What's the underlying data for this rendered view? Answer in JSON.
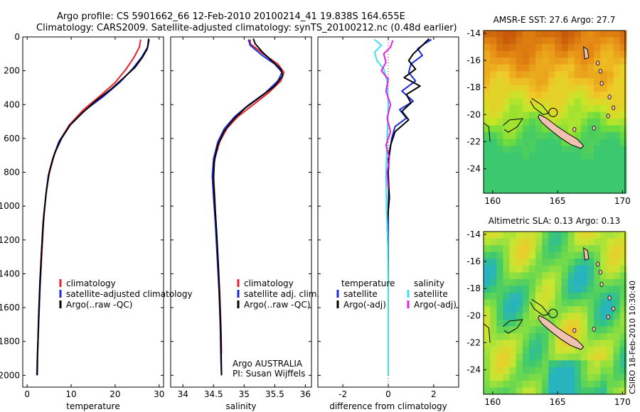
{
  "header": {
    "line1": "Argo profile: CS 5901662_66 12-Feb-2010 20100214_41 19.838S 164.655E",
    "line2": "Climatology: CARS2009. Satellite-adjusted climatology: synTS_20100212.nc (0.48d earlier)"
  },
  "credit": "CSIRO 18-Feb-2010 10:30:40",
  "colors": {
    "climatology": "#e8202a",
    "satellite": "#1a2adc",
    "argo": "#000000",
    "satellite_sal": "#3ee0ee",
    "argo_sal": "#e020e0"
  },
  "chart_data": [
    {
      "type": "line",
      "id": "temperature",
      "xlabel": "temperature",
      "ylabel": "",
      "xlim": [
        -1,
        31
      ],
      "ylim": [
        2070,
        0
      ],
      "xticks": [
        0,
        10,
        20,
        30
      ],
      "yticks": [
        0,
        200,
        400,
        600,
        800,
        1000,
        1200,
        1400,
        1600,
        1800,
        2000
      ],
      "legend": {
        "placement": "lower-left",
        "entries": [
          "climatology",
          "satellite-adjusted climatology",
          "Argo(..raw -QC)"
        ]
      },
      "series": [
        {
          "name": "climatology",
          "color": "#e8202a",
          "points": [
            [
              25.8,
              15
            ],
            [
              25.5,
              60
            ],
            [
              24.3,
              120
            ],
            [
              22.5,
              190
            ],
            [
              20.0,
              270
            ],
            [
              16.5,
              350
            ],
            [
              12.8,
              430
            ],
            [
              9.6,
              520
            ],
            [
              7.2,
              620
            ],
            [
              5.9,
              720
            ],
            [
              4.9,
              820
            ],
            [
              4.2,
              950
            ],
            [
              3.7,
              1100
            ],
            [
              3.3,
              1300
            ],
            [
              2.9,
              1500
            ],
            [
              2.6,
              1700
            ],
            [
              2.4,
              1870
            ]
          ]
        },
        {
          "name": "satellite-adjusted climatology",
          "color": "#1a2adc",
          "points": [
            [
              27.7,
              15
            ],
            [
              27.4,
              60
            ],
            [
              26.0,
              120
            ],
            [
              23.9,
              190
            ],
            [
              21.0,
              270
            ],
            [
              17.4,
              350
            ],
            [
              13.3,
              430
            ],
            [
              9.8,
              520
            ],
            [
              7.2,
              620
            ],
            [
              5.8,
              720
            ],
            [
              4.8,
              820
            ],
            [
              4.2,
              950
            ],
            [
              3.6,
              1100
            ],
            [
              3.2,
              1300
            ],
            [
              2.9,
              1500
            ],
            [
              2.6,
              1700
            ],
            [
              2.3,
              1900
            ],
            [
              2.2,
              2000
            ]
          ]
        },
        {
          "name": "Argo(..raw -QC)",
          "color": "#000000",
          "points": [
            [
              27.6,
              10
            ],
            [
              27.5,
              40
            ],
            [
              27.3,
              70
            ],
            [
              26.2,
              120
            ],
            [
              24.5,
              180
            ],
            [
              22.0,
              240
            ],
            [
              19.0,
              310
            ],
            [
              15.5,
              380
            ],
            [
              12.5,
              450
            ],
            [
              9.8,
              520
            ],
            [
              7.8,
              600
            ],
            [
              6.2,
              690
            ],
            [
              5.1,
              790
            ],
            [
              4.4,
              900
            ],
            [
              3.8,
              1050
            ],
            [
              3.3,
              1250
            ],
            [
              2.9,
              1450
            ],
            [
              2.6,
              1650
            ],
            [
              2.4,
              1850
            ],
            [
              2.3,
              2000
            ]
          ]
        }
      ]
    },
    {
      "type": "line",
      "id": "salinity",
      "xlabel": "salinity",
      "ylabel": "",
      "xlim": [
        33.8,
        36.1
      ],
      "ylim": [
        2070,
        0
      ],
      "xticks": [
        34,
        34.5,
        35,
        35.5,
        36
      ],
      "yticks": [
        0,
        200,
        400,
        600,
        800,
        1000,
        1200,
        1400,
        1600,
        1800,
        2000
      ],
      "legend": {
        "placement": "lower-right",
        "entries": [
          "climatology",
          "satellite adj. clim.",
          "Argo(..raw -QC)"
        ]
      },
      "annotations": [
        "Argo AUSTRALIA",
        "PI: Susan Wijffels"
      ],
      "series": [
        {
          "name": "climatology",
          "color": "#e8202a",
          "points": [
            [
              35.1,
              15
            ],
            [
              35.1,
              40
            ],
            [
              35.35,
              110
            ],
            [
              35.55,
              160
            ],
            [
              35.65,
              210
            ],
            [
              35.6,
              260
            ],
            [
              35.4,
              330
            ],
            [
              35.15,
              400
            ],
            [
              34.9,
              470
            ],
            [
              34.72,
              540
            ],
            [
              34.6,
              620
            ],
            [
              34.52,
              720
            ],
            [
              34.5,
              820
            ],
            [
              34.52,
              950
            ],
            [
              34.54,
              1100
            ],
            [
              34.57,
              1300
            ],
            [
              34.6,
              1500
            ],
            [
              34.62,
              1700
            ],
            [
              34.63,
              1870
            ]
          ]
        },
        {
          "name": "satellite adj. clim.",
          "color": "#1a2adc",
          "points": [
            [
              35.07,
              15
            ],
            [
              35.1,
              50
            ],
            [
              35.3,
              110
            ],
            [
              35.5,
              160
            ],
            [
              35.62,
              210
            ],
            [
              35.55,
              260
            ],
            [
              35.35,
              330
            ],
            [
              35.08,
              400
            ],
            [
              34.85,
              470
            ],
            [
              34.68,
              540
            ],
            [
              34.57,
              620
            ],
            [
              34.5,
              720
            ],
            [
              34.48,
              820
            ],
            [
              34.5,
              950
            ],
            [
              34.53,
              1100
            ],
            [
              34.56,
              1300
            ],
            [
              34.59,
              1500
            ],
            [
              34.61,
              1700
            ],
            [
              34.62,
              1900
            ],
            [
              34.63,
              2000
            ]
          ]
        },
        {
          "name": "Argo(..raw -QC)",
          "color": "#000000",
          "points": [
            [
              35.15,
              10
            ],
            [
              35.18,
              40
            ],
            [
              35.3,
              90
            ],
            [
              35.45,
              140
            ],
            [
              35.6,
              190
            ],
            [
              35.63,
              230
            ],
            [
              35.5,
              290
            ],
            [
              35.28,
              350
            ],
            [
              35.02,
              420
            ],
            [
              34.82,
              490
            ],
            [
              34.67,
              560
            ],
            [
              34.57,
              640
            ],
            [
              34.51,
              740
            ],
            [
              34.5,
              850
            ],
            [
              34.52,
              980
            ],
            [
              34.55,
              1150
            ],
            [
              34.58,
              1350
            ],
            [
              34.6,
              1550
            ],
            [
              34.62,
              1750
            ],
            [
              34.63,
              2000
            ]
          ]
        }
      ]
    },
    {
      "type": "line",
      "id": "difference",
      "xlabel": "difference from climatology",
      "ylabel": "",
      "xlim": [
        -3.1,
        3.1
      ],
      "ylim": [
        2070,
        0
      ],
      "xticks": [
        -2,
        0,
        2
      ],
      "yticks": [
        0,
        200,
        400,
        600,
        800,
        1000,
        1200,
        1400,
        1600,
        1800,
        2000
      ],
      "legend": {
        "placement": "lower",
        "entries": [
          "temperature",
          "satellite",
          "Argo(-adj)",
          "salinity",
          "satellite",
          "Argo(-adj)"
        ]
      },
      "series": [
        {
          "name": "temperature satellite",
          "color": "#1a2adc",
          "points": [
            [
              1.9,
              15
            ],
            [
              1.6,
              40
            ],
            [
              1.3,
              70
            ],
            [
              1.5,
              110
            ],
            [
              1.0,
              160
            ],
            [
              0.9,
              210
            ],
            [
              1.2,
              260
            ],
            [
              0.6,
              320
            ],
            [
              1.1,
              380
            ],
            [
              0.5,
              430
            ],
            [
              0.8,
              480
            ],
            [
              0.3,
              530
            ],
            [
              0.15,
              600
            ],
            [
              0.05,
              700
            ],
            [
              0,
              800
            ],
            [
              0.02,
              900
            ],
            [
              0,
              1000
            ],
            [
              0,
              1200
            ],
            [
              0,
              1500
            ],
            [
              0,
              1800
            ],
            [
              0,
              2000
            ]
          ]
        },
        {
          "name": "temperature Argo(-adj)",
          "color": "#000000",
          "points": [
            [
              1.8,
              10
            ],
            [
              1.5,
              50
            ],
            [
              1.1,
              100
            ],
            [
              0.9,
              140
            ],
            [
              1.2,
              190
            ],
            [
              0.7,
              240
            ],
            [
              1.4,
              290
            ],
            [
              0.8,
              340
            ],
            [
              1.0,
              390
            ],
            [
              0.6,
              440
            ],
            [
              0.9,
              490
            ],
            [
              0.3,
              560
            ],
            [
              0.1,
              640
            ],
            [
              0,
              720
            ],
            [
              0,
              820
            ],
            [
              0.05,
              950
            ],
            [
              -0.05,
              1100
            ],
            [
              0,
              1300
            ],
            [
              0,
              1600
            ],
            [
              0,
              1900
            ],
            [
              0,
              2000
            ]
          ]
        },
        {
          "name": "salinity satellite",
          "color": "#3ee0ee",
          "points": [
            [
              -0.6,
              15
            ],
            [
              -0.3,
              50
            ],
            [
              -0.6,
              90
            ],
            [
              -0.5,
              140
            ],
            [
              -0.2,
              190
            ],
            [
              -0.05,
              260
            ],
            [
              0,
              400
            ],
            [
              -0.05,
              600
            ],
            [
              -0.1,
              800
            ],
            [
              -0.08,
              1000
            ],
            [
              -0.02,
              1200
            ],
            [
              0,
              1500
            ],
            [
              0,
              1800
            ],
            [
              0,
              2000
            ]
          ]
        },
        {
          "name": "salinity Argo(-adj)",
          "color": "#e020e0",
          "points": [
            [
              0.2,
              20
            ],
            [
              0.1,
              60
            ],
            [
              -0.2,
              100
            ],
            [
              -0.1,
              150
            ],
            [
              -0.3,
              200
            ],
            [
              0,
              250
            ],
            [
              -0.1,
              320
            ],
            [
              0.1,
              400
            ],
            [
              -0.05,
              480
            ],
            [
              0.1,
              560
            ],
            [
              -0.1,
              640
            ],
            [
              0.05,
              720
            ],
            [
              -0.05,
              800
            ],
            [
              0,
              900
            ]
          ]
        }
      ]
    },
    {
      "type": "heatmap",
      "id": "sst_map",
      "title": "AMSR-E SST: 27.6 Argo: 27.7",
      "xlim": [
        159.3,
        170.2
      ],
      "ylim": [
        -25.8,
        -13.8
      ],
      "xticks": [
        160,
        165,
        170
      ],
      "yticks": [
        -14,
        -16,
        -18,
        -20,
        -22,
        -24
      ],
      "marker": {
        "lon": 164.655,
        "lat": -19.838
      }
    },
    {
      "type": "heatmap",
      "id": "sla_map",
      "title": "Altimetric SLA: 0.13 Argo: 0.13",
      "xlim": [
        159.3,
        170.2
      ],
      "ylim": [
        -25.8,
        -13.8
      ],
      "xticks": [
        160,
        165,
        170
      ],
      "yticks": [
        -14,
        -16,
        -18,
        -20,
        -22,
        -24
      ],
      "marker": {
        "lon": 164.655,
        "lat": -19.838
      }
    }
  ]
}
